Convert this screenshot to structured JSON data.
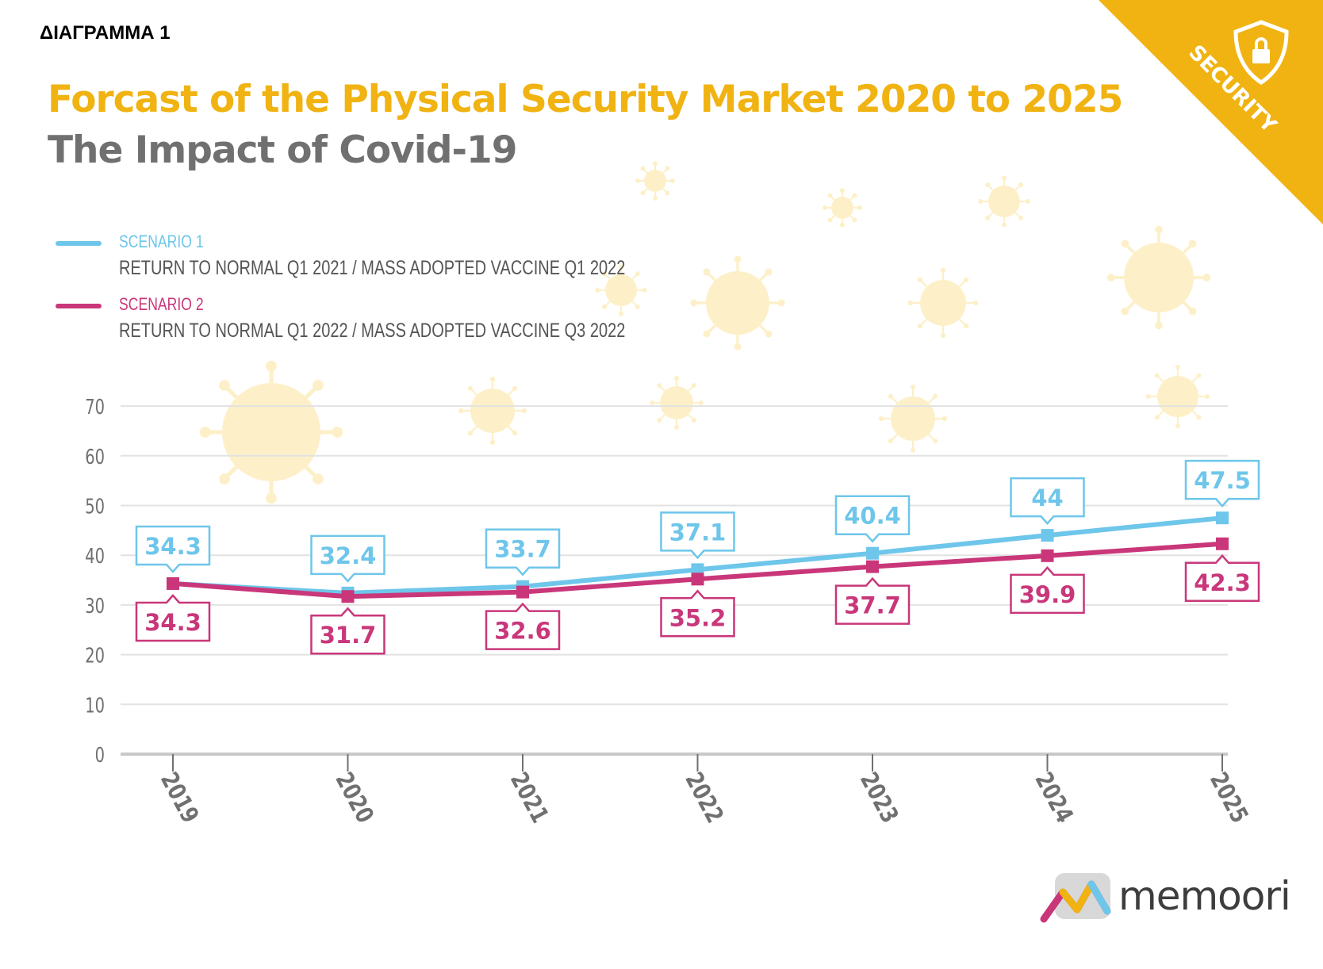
{
  "caption": "ΔΙΑΓΡΑΜΜΑ 1",
  "badge": {
    "label": "SECURITY",
    "icon": "shield-lock-icon",
    "color": "#f0b312"
  },
  "brand": {
    "name": "memoori",
    "icon": "memoori-logo-icon"
  },
  "colors": {
    "scenario1": "#6ec6ea",
    "scenario2": "#c9377a",
    "accent": "#f0b312",
    "text": "#707070",
    "virus": "#fdf0c8"
  },
  "decoration": {
    "icon": "virus-icon"
  },
  "chart_data": {
    "type": "line",
    "title": "Forcast of the Physical Security Market 2020 to 2025",
    "subtitle": "The Impact of Covid-19",
    "categories": [
      "2019",
      "2020",
      "2021",
      "2022",
      "2023",
      "2024",
      "2025"
    ],
    "ylim": [
      0,
      70
    ],
    "yticks": [
      0,
      10,
      20,
      30,
      40,
      50,
      60,
      70
    ],
    "grid": true,
    "legend_position": "top-left",
    "series": [
      {
        "name": "SCENARIO 1",
        "description": "RETURN TO NORMAL Q1 2021 / MASS ADOPTED VACCINE Q1 2022",
        "values": [
          34.3,
          32.4,
          33.7,
          37.1,
          40.4,
          44,
          47.5
        ],
        "labels": [
          "34.3",
          "32.4",
          "33.7",
          "37.1",
          "40.4",
          "44",
          "47.5"
        ],
        "label_position": "above"
      },
      {
        "name": "SCENARIO 2",
        "description": "RETURN TO NORMAL Q1 2022 / MASS ADOPTED VACCINE Q3 2022",
        "values": [
          34.3,
          31.7,
          32.6,
          35.2,
          37.7,
          39.9,
          42.3
        ],
        "labels": [
          "34.3",
          "31.7",
          "32.6",
          "35.2",
          "37.7",
          "39.9",
          "42.3"
        ],
        "label_position": "below"
      }
    ]
  }
}
